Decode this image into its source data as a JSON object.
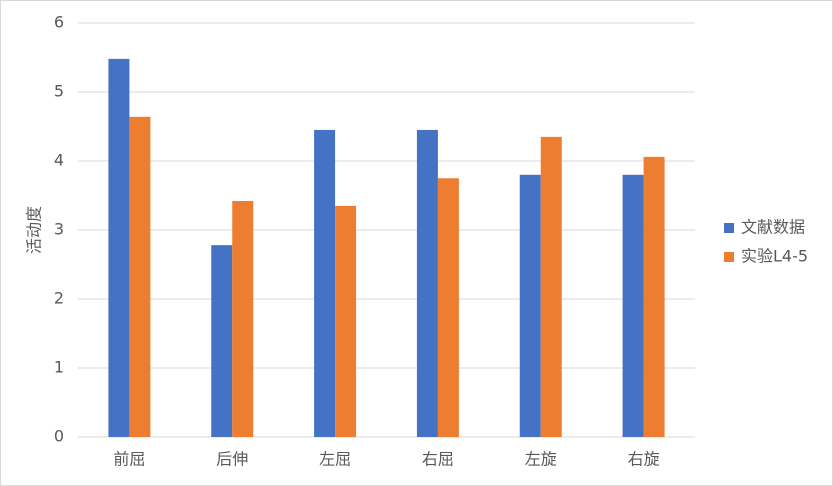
{
  "chart_data": {
    "type": "bar",
    "y_label": "活动度",
    "categories": [
      "前屈",
      "后伸",
      "左屈",
      "右屈",
      "左旋",
      "右旋"
    ],
    "series": [
      {
        "name": "文献数据",
        "color": "#4472c4",
        "values": [
          5.48,
          2.78,
          4.45,
          4.45,
          3.8,
          3.8
        ]
      },
      {
        "name": "实验L4-5",
        "color": "#ed7d31",
        "values": [
          4.64,
          3.42,
          3.35,
          3.75,
          4.35,
          4.06
        ]
      }
    ],
    "ylim": [
      0,
      6
    ],
    "yticks": [
      0,
      1,
      2,
      3,
      4,
      5,
      6
    ],
    "grid": true,
    "legend": "right"
  }
}
